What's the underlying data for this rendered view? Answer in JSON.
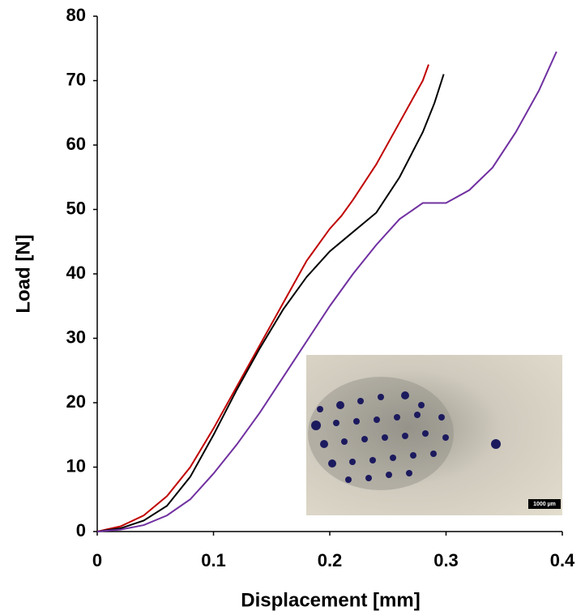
{
  "chart_data": {
    "type": "line",
    "xlabel": "Displacement [mm]",
    "ylabel": "Load  [N]",
    "xlim": [
      0,
      0.4
    ],
    "xticks": [
      0,
      0.1,
      0.2,
      0.3,
      0.4
    ],
    "ylim": [
      0,
      80
    ],
    "yticks": [
      0,
      10,
      20,
      30,
      40,
      50,
      60,
      70,
      80
    ],
    "grid": false,
    "annotations": [
      "1000 µm"
    ],
    "series": [
      {
        "color": "#c00000",
        "x": [
          0,
          0.02,
          0.04,
          0.06,
          0.08,
          0.1,
          0.12,
          0.14,
          0.16,
          0.18,
          0.2,
          0.21,
          0.22,
          0.24,
          0.26,
          0.28,
          0.285
        ],
        "values": [
          0,
          0.8,
          2.5,
          5.5,
          10,
          16,
          22.5,
          29,
          35.5,
          42,
          47,
          49,
          51.5,
          57,
          63.5,
          70,
          72.5
        ]
      },
      {
        "color": "#000000",
        "x": [
          0,
          0.02,
          0.04,
          0.06,
          0.08,
          0.1,
          0.12,
          0.14,
          0.16,
          0.18,
          0.2,
          0.22,
          0.24,
          0.26,
          0.28,
          0.29,
          0.298
        ],
        "values": [
          0,
          0.5,
          1.7,
          4,
          8.5,
          15,
          22,
          28.5,
          34.5,
          39.5,
          43.5,
          46.5,
          49.5,
          55,
          62,
          66.5,
          71
        ]
      },
      {
        "color": "#7030a0",
        "x": [
          0,
          0.02,
          0.04,
          0.06,
          0.08,
          0.1,
          0.12,
          0.14,
          0.16,
          0.18,
          0.2,
          0.22,
          0.24,
          0.26,
          0.28,
          0.3,
          0.32,
          0.34,
          0.36,
          0.38,
          0.395
        ],
        "values": [
          0,
          0.3,
          1,
          2.5,
          5,
          9,
          13.5,
          18.5,
          24,
          29.5,
          35,
          40,
          44.5,
          48.5,
          51,
          51,
          53,
          56.5,
          62,
          68.5,
          74.5
        ]
      }
    ]
  }
}
